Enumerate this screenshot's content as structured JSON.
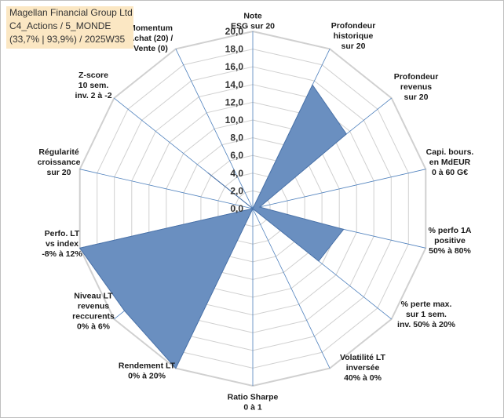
{
  "title_box": {
    "line1": "Magellan Financial Group Ltd",
    "line2": "C4_Actions / 5_MONDE",
    "line3": "(33,7% | 93,9%) / 2025W35",
    "background": "#fbe7c3"
  },
  "chart_data": {
    "type": "radar",
    "title": "",
    "rmax": 20,
    "tick_step": 2,
    "ticks": [
      "0,0",
      "2,0",
      "4,0",
      "6,0",
      "8,0",
      "10,0",
      "12,0",
      "14,0",
      "16,0",
      "18,0",
      "20,0"
    ],
    "grid": true,
    "fill_color": "#6a8fc0",
    "stroke_color": "#4a72a8",
    "grid_color": "#d0d0d0",
    "spoke_color": "#4f81bd",
    "axes": [
      {
        "label": [
          "Note",
          "ESG sur 20"
        ],
        "value": 0
      },
      {
        "label": [
          "Profondeur",
          "historique",
          "sur 20"
        ],
        "value": 15.5
      },
      {
        "label": [
          "Profondeur",
          "revenus",
          "sur 20"
        ],
        "value": 13.5
      },
      {
        "label": [
          "Capi. bours.",
          "en MdEUR",
          "0 à 60 G€"
        ],
        "value": 0.8
      },
      {
        "label": [
          "% perfo 1A",
          "positive",
          "50% à 80%"
        ],
        "value": 10.5
      },
      {
        "label": [
          "% perte max.",
          "sur 1 sem.",
          "inv. 50% à 20%"
        ],
        "value": 9.5
      },
      {
        "label": [
          "Volatilité LT",
          "inversée",
          "40% à 0%"
        ],
        "value": 0
      },
      {
        "label": [
          "Ratio Sharpe",
          "0 à 1"
        ],
        "value": 0
      },
      {
        "label": [
          "Rendement LT",
          "0% à 20%"
        ],
        "value": 20
      },
      {
        "label": [
          "Niveau LT",
          "revenus",
          "reccurents",
          "0% à 6%"
        ],
        "value": 18.5
      },
      {
        "label": [
          "Perfo. LT",
          "vs index",
          "-8% à 12%"
        ],
        "value": 20
      },
      {
        "label": [
          "Régularité",
          "croissance",
          "sur 20"
        ],
        "value": 0
      },
      {
        "label": [
          "Z-score",
          "10 sem.",
          "inv. 2 à -2"
        ],
        "value": 6.5
      },
      {
        "label": [
          "Momentum",
          "Achat (20) /",
          "Vente (0)"
        ],
        "value": 0
      }
    ]
  }
}
